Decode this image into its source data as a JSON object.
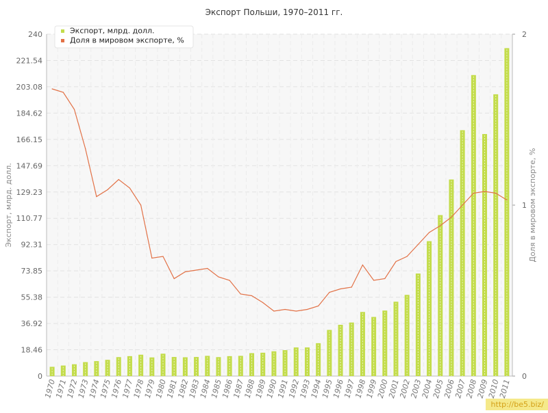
{
  "chart_data": {
    "type": "bar",
    "title": "Экспорт Польши, 1970–2011 гг.",
    "ylabel": "Экспорт, млрд. долл.",
    "y2label": "Доля в мировом экспорте, %",
    "ylim": [
      0,
      240
    ],
    "y2lim": [
      0,
      2
    ],
    "y_ticks": [
      "0",
      "18.46",
      "36.92",
      "55.38",
      "73.85",
      "92.31",
      "110.77",
      "129.23",
      "147.69",
      "166.15",
      "184.62",
      "203.08",
      "221.54",
      "240"
    ],
    "y2_ticks": [
      "0",
      "1",
      "2"
    ],
    "grid": true,
    "legend_position": "top-left",
    "categories": [
      "1970",
      "1971",
      "1972",
      "1973",
      "1974",
      "1975",
      "1976",
      "1977",
      "1978",
      "1979",
      "1980",
      "1981",
      "1982",
      "1983",
      "1984",
      "1985",
      "1986",
      "1987",
      "1988",
      "1989",
      "1990",
      "1991",
      "1992",
      "1993",
      "1994",
      "1995",
      "1996",
      "1997",
      "1998",
      "1999",
      "2000",
      "2001",
      "2002",
      "2003",
      "2004",
      "2005",
      "2006",
      "2007",
      "2008",
      "2009",
      "2010",
      "2011"
    ],
    "series": [
      {
        "name": "Экспорт, млрд. долл.",
        "type": "bar",
        "axis": "left",
        "color": "#c3dc4b",
        "values": [
          6.5,
          7.4,
          8.3,
          9.8,
          10.5,
          11.4,
          13.3,
          14.0,
          15.0,
          13.1,
          15.7,
          13.4,
          13.2,
          13.4,
          14.2,
          13.3,
          14.0,
          14.2,
          16.1,
          16.4,
          17.4,
          18.2,
          20.1,
          20.1,
          23.1,
          32.4,
          36.0,
          37.6,
          45.0,
          41.5,
          46.0,
          52.2,
          57.0,
          72.0,
          94.7,
          113.0,
          138.0,
          172.6,
          211.3,
          169.9,
          197.8,
          230.2
        ]
      },
      {
        "name": "Доля в мировом экспорте, %",
        "type": "line",
        "axis": "right",
        "color": "#e27146",
        "values": [
          1.68,
          1.66,
          1.56,
          1.33,
          1.05,
          1.09,
          1.15,
          1.1,
          1.0,
          0.69,
          0.7,
          0.57,
          0.61,
          0.62,
          0.63,
          0.58,
          0.56,
          0.48,
          0.47,
          0.43,
          0.38,
          0.39,
          0.38,
          0.39,
          0.41,
          0.49,
          0.51,
          0.52,
          0.65,
          0.56,
          0.57,
          0.67,
          0.7,
          0.77,
          0.84,
          0.88,
          0.93,
          1.0,
          1.07,
          1.08,
          1.07,
          1.03
        ]
      }
    ]
  },
  "watermark": "http://be5.biz/"
}
